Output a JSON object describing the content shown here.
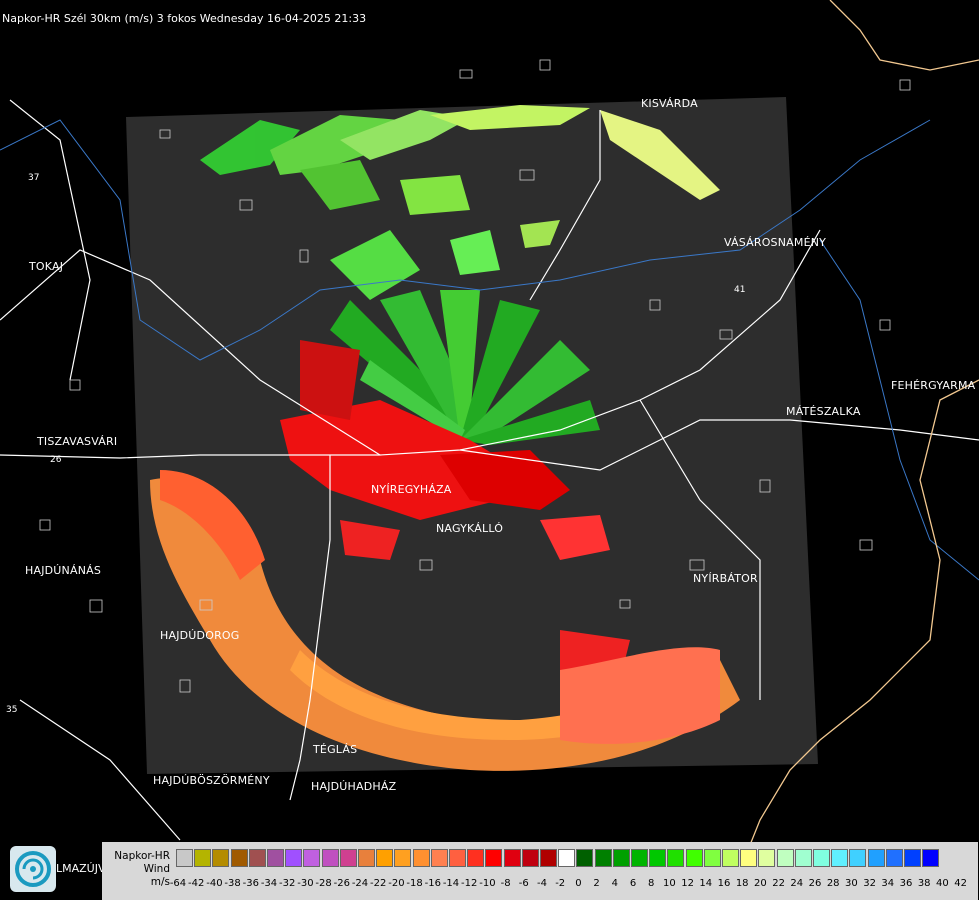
{
  "title": "Napkor-HR Szél 30km (m/s) 3 fokos Wednesday 16-04-2025 21:33",
  "colors": {
    "background": "#000000",
    "radar_area": "#2d2d2d",
    "legend_bg": "#d8d8d8"
  },
  "cities": {
    "kisvarda": "KISVÁRDA",
    "tokaj": "TOKAJ",
    "vasarosnameny": "VÁSÁROSNAMÉNY",
    "fehergyarmat": "FEHÉRGYARMA",
    "mateszalka": "MÁTÉSZALKA",
    "tiszavasvari": "TISZAVASVÁRI",
    "nyiregyhaza": "NYÍREGYHÁZA",
    "nagykallo": "NAGYKÁLLÓ",
    "hajdunanas": "HAJDÚNÁNÁS",
    "nyirbator": "NYÍRBÁTOR",
    "hajdudorog": "HAJDÚDOROG",
    "teglas": "TÉGLÁS",
    "hajduboszormeny": "HAJDÚBÖSZÖRMÉNY",
    "hajduhadhaz": "HAJDÚHADHÁZ"
  },
  "roads": {
    "r26": "26",
    "r35": "35",
    "r37": "37",
    "r41": "41"
  },
  "logo_text": "LMAZÚJVÁR",
  "legend": {
    "name_line1": "Napkor-HR",
    "name_line2": "Wind",
    "unit": "m/s",
    "swatch_colors": [
      "#c8c8c8",
      "#b4b400",
      "#b48c00",
      "#a05a00",
      "#a05050",
      "#a050a0",
      "#a050ff",
      "#c060e0",
      "#c050c0",
      "#d04090",
      "#e8803c",
      "#ffa000",
      "#ffa020",
      "#ff9030",
      "#ff8050",
      "#ff6040",
      "#ff3020",
      "#ff0000",
      "#e00010",
      "#c00010",
      "#b00000",
      "#ffffff",
      "#006000",
      "#008000",
      "#00a000",
      "#00b400",
      "#00c800",
      "#20e000",
      "#40ff00",
      "#80ff40",
      "#c0ff60",
      "#ffff80",
      "#e0ffa0",
      "#c0ffc0",
      "#a0ffd0",
      "#80ffe0",
      "#60f0ff",
      "#40d0ff",
      "#20a0ff",
      "#2070ff",
      "#0040ff",
      "#0000ff"
    ],
    "ticks": [
      "-64",
      "-42",
      "-40",
      "-38",
      "-36",
      "-34",
      "-32",
      "-30",
      "-28",
      "-26",
      "-24",
      "-22",
      "-20",
      "-18",
      "-16",
      "-14",
      "-12",
      "-10",
      "-8",
      "-6",
      "-4",
      "-2",
      "0",
      "2",
      "4",
      "6",
      "8",
      "10",
      "12",
      "14",
      "16",
      "18",
      "20",
      "22",
      "24",
      "26",
      "28",
      "30",
      "32",
      "34",
      "36",
      "38",
      "40",
      "42"
    ]
  }
}
